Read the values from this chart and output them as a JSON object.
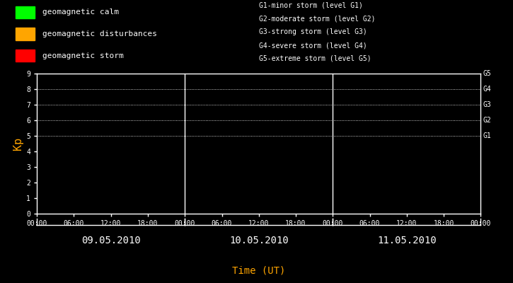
{
  "bg_color": "#000000",
  "fg_color": "#ffffff",
  "orange_color": "#ffa500",
  "ylabel": "Kp",
  "xlabel": "Time (UT)",
  "ylim": [
    0,
    9
  ],
  "yticks": [
    0,
    1,
    2,
    3,
    4,
    5,
    6,
    7,
    8,
    9
  ],
  "days": [
    "09.05.2010",
    "10.05.2010",
    "11.05.2010"
  ],
  "time_ticks_labels": [
    "00:00",
    "06:00",
    "12:00",
    "18:00"
  ],
  "right_labels": [
    {
      "y": 5,
      "text": "G1"
    },
    {
      "y": 6,
      "text": "G2"
    },
    {
      "y": 7,
      "text": "G3"
    },
    {
      "y": 8,
      "text": "G4"
    },
    {
      "y": 9,
      "text": "G5"
    }
  ],
  "dotted_lines_y": [
    5,
    6,
    7,
    8,
    9
  ],
  "legend_items": [
    {
      "color": "#00ff00",
      "label": "geomagnetic calm"
    },
    {
      "color": "#ffa500",
      "label": "geomagnetic disturbances"
    },
    {
      "color": "#ff0000",
      "label": "geomagnetic storm"
    }
  ],
  "storm_legend": [
    "G1-minor storm (level G1)",
    "G2-moderate storm (level G2)",
    "G3-strong storm (level G3)",
    "G4-severe storm (level G4)",
    "G5-extreme storm (level G5)"
  ],
  "font_family": "monospace",
  "tick_fontsize": 7,
  "legend_fontsize": 8,
  "storm_fontsize": 7,
  "ylabel_fontsize": 11,
  "xlabel_fontsize": 10,
  "day_fontsize": 10
}
